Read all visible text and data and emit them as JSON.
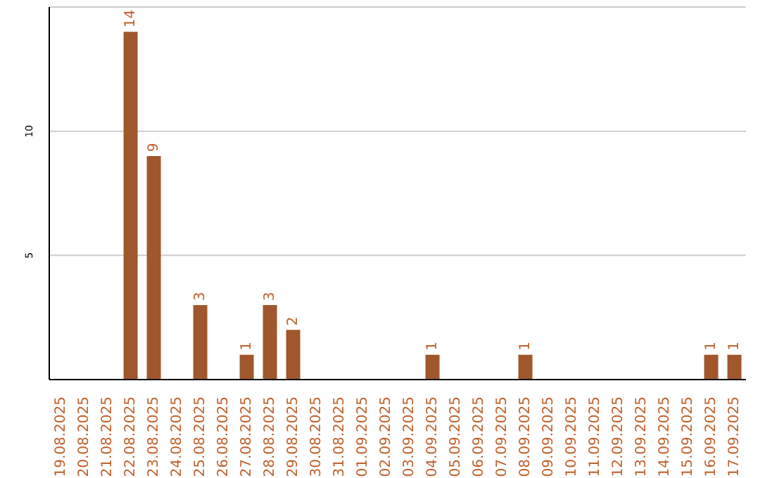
{
  "chart_data": {
    "type": "bar",
    "categories": [
      "19.08.2025",
      "20.08.2025",
      "21.08.2025",
      "22.08.2025",
      "23.08.2025",
      "24.08.2025",
      "25.08.2025",
      "26.08.2025",
      "27.08.2025",
      "28.08.2025",
      "29.08.2025",
      "30.08.2025",
      "31.08.2025",
      "01.09.2025",
      "02.09.2025",
      "03.09.2025",
      "04.09.2025",
      "05.09.2025",
      "06.09.2025",
      "07.09.2025",
      "08.09.2025",
      "09.09.2025",
      "10.09.2025",
      "11.09.2025",
      "12.09.2025",
      "13.09.2025",
      "14.09.2025",
      "15.09.2025",
      "16.09.2025",
      "17.09.2025"
    ],
    "values": [
      0,
      0,
      0,
      14,
      9,
      0,
      3,
      0,
      1,
      3,
      2,
      0,
      0,
      0,
      0,
      0,
      1,
      0,
      0,
      0,
      1,
      0,
      0,
      0,
      0,
      0,
      0,
      0,
      1,
      1
    ],
    "value_labels": [
      null,
      null,
      null,
      "14",
      "9",
      null,
      "3",
      null,
      "1",
      "3",
      "2",
      null,
      null,
      null,
      null,
      null,
      "1",
      null,
      null,
      null,
      "1",
      null,
      null,
      null,
      null,
      null,
      null,
      null,
      "1",
      "1"
    ],
    "color": "#a0572b",
    "ylim": [
      0,
      15
    ],
    "yticks": [
      5,
      10
    ],
    "grid": "y"
  }
}
